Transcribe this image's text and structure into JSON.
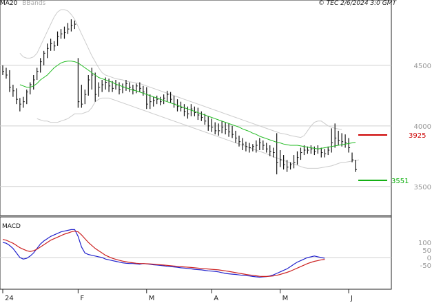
{
  "header": {
    "legend_ma": "MA20",
    "legend_bbands": "BBands",
    "copyright": "© TEC 2/6/2024 3:0 GMT"
  },
  "colors": {
    "ma": "#22bb22",
    "bbands": "#cccccc",
    "price": "#111111",
    "macd": "#2222cc",
    "signal": "#cc2222",
    "grid": "#d0d0d0",
    "resistance": "#cc0000",
    "support": "#00aa00"
  },
  "chart_data": [
    {
      "type": "line",
      "title": "",
      "x_ticks": [
        "24",
        "F",
        "M",
        "A",
        "M",
        "J"
      ],
      "x_tick_index": [
        0,
        22,
        42,
        61,
        81,
        101
      ],
      "y_ticks": [
        "4500",
        "4000",
        "3500"
      ],
      "y_tick_values": [
        4500,
        4000,
        3500
      ],
      "ylim": [
        3260,
        4960
      ],
      "resistance": {
        "value": 3925,
        "label": "3925"
      },
      "support": {
        "value": 3551,
        "label": "3551"
      },
      "ohlc": [
        {
          "h": 4500,
          "l": 4420,
          "c": 4450
        },
        {
          "h": 4480,
          "l": 4390,
          "c": 4420
        },
        {
          "h": 4460,
          "l": 4280,
          "c": 4320
        },
        {
          "h": 4340,
          "l": 4240,
          "c": 4290
        },
        {
          "h": 4310,
          "l": 4180,
          "c": 4220
        },
        {
          "h": 4230,
          "l": 4120,
          "c": 4180
        },
        {
          "h": 4240,
          "l": 4150,
          "c": 4200
        },
        {
          "h": 4300,
          "l": 4180,
          "c": 4280
        },
        {
          "h": 4360,
          "l": 4260,
          "c": 4340
        },
        {
          "h": 4420,
          "l": 4300,
          "c": 4380
        },
        {
          "h": 4480,
          "l": 4380,
          "c": 4450
        },
        {
          "h": 4560,
          "l": 4440,
          "c": 4530
        },
        {
          "h": 4620,
          "l": 4500,
          "c": 4600
        },
        {
          "h": 4680,
          "l": 4560,
          "c": 4640
        },
        {
          "h": 4720,
          "l": 4620,
          "c": 4680
        },
        {
          "h": 4700,
          "l": 4620,
          "c": 4660
        },
        {
          "h": 4780,
          "l": 4660,
          "c": 4740
        },
        {
          "h": 4800,
          "l": 4720,
          "c": 4760
        },
        {
          "h": 4820,
          "l": 4720,
          "c": 4770
        },
        {
          "h": 4850,
          "l": 4760,
          "c": 4800
        },
        {
          "h": 4880,
          "l": 4780,
          "c": 4830
        },
        {
          "h": 4870,
          "l": 4800,
          "c": 4840
        },
        {
          "h": 4560,
          "l": 4150,
          "c": 4200
        },
        {
          "h": 4340,
          "l": 4150,
          "c": 4180
        },
        {
          "h": 4300,
          "l": 4180,
          "c": 4260
        },
        {
          "h": 4420,
          "l": 4250,
          "c": 4380
        },
        {
          "h": 4480,
          "l": 4300,
          "c": 4420
        },
        {
          "h": 4440,
          "l": 4200,
          "c": 4260
        },
        {
          "h": 4360,
          "l": 4240,
          "c": 4320
        },
        {
          "h": 4380,
          "l": 4280,
          "c": 4340
        },
        {
          "h": 4400,
          "l": 4300,
          "c": 4360
        },
        {
          "h": 4390,
          "l": 4280,
          "c": 4330
        },
        {
          "h": 4370,
          "l": 4280,
          "c": 4310
        },
        {
          "h": 4380,
          "l": 4300,
          "c": 4340
        },
        {
          "h": 4360,
          "l": 4260,
          "c": 4300
        },
        {
          "h": 4350,
          "l": 4270,
          "c": 4320
        },
        {
          "h": 4380,
          "l": 4290,
          "c": 4350
        },
        {
          "h": 4360,
          "l": 4280,
          "c": 4320
        },
        {
          "h": 4340,
          "l": 4260,
          "c": 4300
        },
        {
          "h": 4350,
          "l": 4270,
          "c": 4330
        },
        {
          "h": 4360,
          "l": 4280,
          "c": 4310
        },
        {
          "h": 4330,
          "l": 4250,
          "c": 4280
        },
        {
          "h": 4320,
          "l": 4140,
          "c": 4180
        },
        {
          "h": 4260,
          "l": 4140,
          "c": 4200
        },
        {
          "h": 4240,
          "l": 4160,
          "c": 4210
        },
        {
          "h": 4250,
          "l": 4180,
          "c": 4220
        },
        {
          "h": 4240,
          "l": 4170,
          "c": 4200
        },
        {
          "h": 4260,
          "l": 4180,
          "c": 4230
        },
        {
          "h": 4290,
          "l": 4200,
          "c": 4260
        },
        {
          "h": 4280,
          "l": 4190,
          "c": 4220
        },
        {
          "h": 4250,
          "l": 4150,
          "c": 4180
        },
        {
          "h": 4220,
          "l": 4120,
          "c": 4160
        },
        {
          "h": 4200,
          "l": 4120,
          "c": 4150
        },
        {
          "h": 4180,
          "l": 4080,
          "c": 4120
        },
        {
          "h": 4160,
          "l": 4060,
          "c": 4100
        },
        {
          "h": 4180,
          "l": 4080,
          "c": 4140
        },
        {
          "h": 4160,
          "l": 4080,
          "c": 4110
        },
        {
          "h": 4150,
          "l": 4050,
          "c": 4090
        },
        {
          "h": 4120,
          "l": 4040,
          "c": 4070
        },
        {
          "h": 4100,
          "l": 4010,
          "c": 4040
        },
        {
          "h": 4080,
          "l": 3960,
          "c": 4000
        },
        {
          "h": 4060,
          "l": 3950,
          "c": 3990
        },
        {
          "h": 4030,
          "l": 3930,
          "c": 3960
        },
        {
          "h": 4020,
          "l": 3920,
          "c": 3960
        },
        {
          "h": 4040,
          "l": 3940,
          "c": 3990
        },
        {
          "h": 4030,
          "l": 3930,
          "c": 3970
        },
        {
          "h": 4020,
          "l": 3910,
          "c": 3950
        },
        {
          "h": 4000,
          "l": 3900,
          "c": 3930
        },
        {
          "h": 3960,
          "l": 3860,
          "c": 3900
        },
        {
          "h": 3920,
          "l": 3830,
          "c": 3870
        },
        {
          "h": 3900,
          "l": 3800,
          "c": 3850
        },
        {
          "h": 3870,
          "l": 3790,
          "c": 3830
        },
        {
          "h": 3860,
          "l": 3780,
          "c": 3820
        },
        {
          "h": 3850,
          "l": 3790,
          "c": 3830
        },
        {
          "h": 3880,
          "l": 3780,
          "c": 3840
        },
        {
          "h": 3900,
          "l": 3800,
          "c": 3860
        },
        {
          "h": 3880,
          "l": 3800,
          "c": 3840
        },
        {
          "h": 3860,
          "l": 3780,
          "c": 3810
        },
        {
          "h": 3840,
          "l": 3750,
          "c": 3790
        },
        {
          "h": 3820,
          "l": 3740,
          "c": 3780
        },
        {
          "h": 3940,
          "l": 3600,
          "c": 3700
        },
        {
          "h": 3800,
          "l": 3660,
          "c": 3720
        },
        {
          "h": 3760,
          "l": 3640,
          "c": 3680
        },
        {
          "h": 3720,
          "l": 3620,
          "c": 3660
        },
        {
          "h": 3700,
          "l": 3640,
          "c": 3680
        },
        {
          "h": 3760,
          "l": 3650,
          "c": 3700
        },
        {
          "h": 3790,
          "l": 3680,
          "c": 3740
        },
        {
          "h": 3820,
          "l": 3720,
          "c": 3780
        },
        {
          "h": 3840,
          "l": 3760,
          "c": 3800
        },
        {
          "h": 3830,
          "l": 3770,
          "c": 3800
        },
        {
          "h": 3840,
          "l": 3770,
          "c": 3810
        },
        {
          "h": 3830,
          "l": 3760,
          "c": 3790
        },
        {
          "h": 3840,
          "l": 3770,
          "c": 3810
        },
        {
          "h": 3820,
          "l": 3740,
          "c": 3780
        },
        {
          "h": 3810,
          "l": 3740,
          "c": 3770
        },
        {
          "h": 3830,
          "l": 3760,
          "c": 3800
        },
        {
          "h": 3980,
          "l": 3780,
          "c": 3860
        },
        {
          "h": 4020,
          "l": 3820,
          "c": 3900
        },
        {
          "h": 3960,
          "l": 3840,
          "c": 3880
        },
        {
          "h": 3940,
          "l": 3830,
          "c": 3870
        },
        {
          "h": 3930,
          "l": 3820,
          "c": 3860
        },
        {
          "h": 3900,
          "l": 3780,
          "c": 3820
        },
        {
          "h": 3780,
          "l": 3700,
          "c": 3720
        },
        {
          "h": 3720,
          "l": 3620,
          "c": 3640
        }
      ],
      "ma20": [
        4340,
        4330,
        4320,
        4320,
        4330,
        4350,
        4380,
        4400,
        4420,
        4450,
        4480,
        4500,
        4520,
        4530,
        4535,
        4535,
        4530,
        4520,
        4500,
        4480,
        4460,
        4440,
        4420,
        4400,
        4390,
        4380,
        4370,
        4360,
        4345,
        4335,
        4325,
        4315,
        4305,
        4295,
        4290,
        4280,
        4270,
        4260,
        4250,
        4240,
        4230,
        4220,
        4210,
        4200,
        4190,
        4180,
        4170,
        4160,
        4150,
        4140,
        4130,
        4120,
        4110,
        4100,
        4090,
        4080,
        4070,
        4060,
        4050,
        4040,
        4030,
        4020,
        4010,
        4000,
        3990,
        3975,
        3965,
        3955,
        3940,
        3930,
        3915,
        3905,
        3895,
        3885,
        3875,
        3865,
        3860,
        3850,
        3845,
        3840,
        3840,
        3840,
        3835,
        3830,
        3825,
        3820,
        3815,
        3810,
        3815,
        3820,
        3825,
        3830,
        3835,
        3840,
        3845,
        3850,
        3855,
        3860,
        3865
      ],
      "ma20_start_index": 5,
      "bb_upper": [
        4600,
        4570,
        4560,
        4560,
        4570,
        4600,
        4660,
        4720,
        4780,
        4840,
        4900,
        4940,
        4960,
        4960,
        4950,
        4920,
        4880,
        4820,
        4760,
        4700,
        4640,
        4580,
        4530,
        4480,
        4440,
        4420,
        4410,
        4400,
        4390,
        4385,
        4380,
        4370,
        4365,
        4360,
        4355,
        4350,
        4340,
        4330,
        4320,
        4310,
        4300,
        4290,
        4280,
        4270,
        4260,
        4250,
        4240,
        4230,
        4220,
        4210,
        4200,
        4190,
        4180,
        4170,
        4160,
        4150,
        4140,
        4130,
        4120,
        4110,
        4100,
        4090,
        4080,
        4070,
        4060,
        4050,
        4040,
        4030,
        4020,
        4010,
        4000,
        3990,
        3980,
        3970,
        3960,
        3950,
        3940,
        3935,
        3930,
        3920,
        3915,
        3910,
        3905,
        3920,
        3960,
        4000,
        4030,
        4040,
        4040,
        4020,
        4000,
        3990,
        3980,
        3975,
        3970
      ],
      "bb_upper_start_index": 5,
      "bb_lower": [
        4060,
        4050,
        4040,
        4040,
        4030,
        4030,
        4030,
        4040,
        4050,
        4060,
        4080,
        4100,
        4100,
        4100,
        4110,
        4120,
        4150,
        4200,
        4220,
        4230,
        4230,
        4230,
        4220,
        4210,
        4200,
        4190,
        4180,
        4170,
        4160,
        4150,
        4140,
        4130,
        4120,
        4110,
        4100,
        4090,
        4080,
        4070,
        4060,
        4050,
        4040,
        4030,
        4020,
        4010,
        4000,
        3990,
        3980,
        3970,
        3960,
        3950,
        3940,
        3930,
        3920,
        3910,
        3900,
        3890,
        3880,
        3870,
        3860,
        3850,
        3840,
        3830,
        3820,
        3810,
        3800,
        3790,
        3780,
        3770,
        3760,
        3745,
        3735,
        3725,
        3715,
        3705,
        3695,
        3685,
        3675,
        3665,
        3655,
        3650,
        3650,
        3650,
        3650,
        3655,
        3660,
        3665,
        3670,
        3680,
        3690,
        3700,
        3700,
        3705,
        3710,
        3715,
        3720
      ],
      "bb_lower_start_index": 10
    },
    {
      "type": "line",
      "title": "MACD",
      "y_ticks": [
        "100",
        "50",
        "0",
        "-50"
      ],
      "y_tick_values": [
        100,
        50,
        0,
        -50
      ],
      "ylim": [
        -210,
        260
      ],
      "series": [
        {
          "name": "",
          "color_key": "macd",
          "values": [
            100,
            95,
            80,
            60,
            30,
            0,
            -10,
            -5,
            10,
            30,
            60,
            90,
            110,
            125,
            140,
            150,
            160,
            170,
            175,
            180,
            185,
            185,
            140,
            70,
            30,
            20,
            15,
            10,
            5,
            0,
            -10,
            -15,
            -20,
            -25,
            -30,
            -35,
            -38,
            -40,
            -40,
            -42,
            -44,
            -40,
            -42,
            -45,
            -48,
            -50,
            -52,
            -55,
            -58,
            -60,
            -62,
            -65,
            -68,
            -70,
            -72,
            -75,
            -78,
            -80,
            -82,
            -85,
            -88,
            -90,
            -92,
            -95,
            -100,
            -105,
            -108,
            -110,
            -112,
            -115,
            -118,
            -120,
            -122,
            -125,
            -128,
            -130,
            -128,
            -126,
            -122,
            -115,
            -105,
            -95,
            -85,
            -75,
            -60,
            -45,
            -30,
            -20,
            -10,
            0,
            5,
            10,
            5,
            0,
            -5
          ]
        },
        {
          "name": "",
          "color_key": "signal",
          "values": [
            120,
            115,
            105,
            95,
            80,
            65,
            55,
            45,
            40,
            45,
            55,
            70,
            85,
            100,
            115,
            125,
            135,
            145,
            155,
            162,
            170,
            175,
            170,
            150,
            125,
            100,
            80,
            60,
            45,
            30,
            15,
            5,
            -5,
            -12,
            -18,
            -24,
            -28,
            -32,
            -35,
            -38,
            -40,
            -40,
            -41,
            -42,
            -44,
            -46,
            -48,
            -50,
            -52,
            -54,
            -56,
            -58,
            -60,
            -62,
            -64,
            -66,
            -68,
            -70,
            -72,
            -74,
            -76,
            -78,
            -80,
            -82,
            -85,
            -88,
            -92,
            -96,
            -100,
            -104,
            -108,
            -112,
            -115,
            -118,
            -121,
            -124,
            -125,
            -125,
            -124,
            -122,
            -118,
            -112,
            -105,
            -98,
            -90,
            -80,
            -70,
            -60,
            -50,
            -40,
            -32,
            -25,
            -20,
            -15,
            -12
          ]
        }
      ],
      "start_index": 0
    }
  ]
}
